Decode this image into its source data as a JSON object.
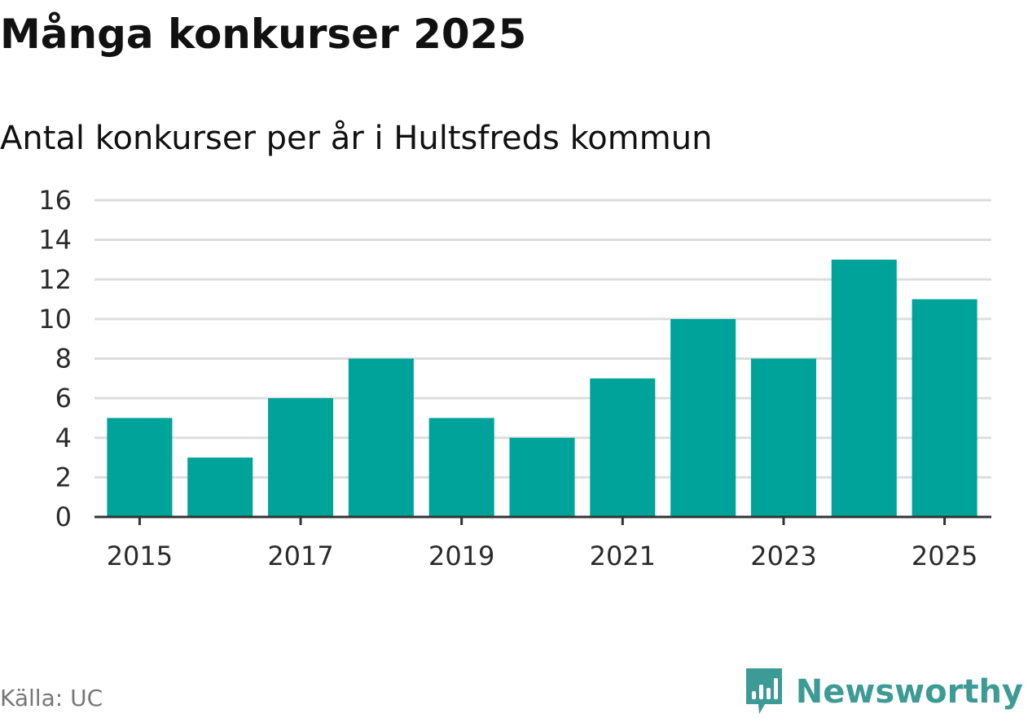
{
  "colors": {
    "bar": "#00a39a",
    "grid": "#dddddd",
    "axis": "#333333",
    "brand": "#3d9b96",
    "source_text": "#777777"
  },
  "footer": {
    "source": "Källa: UC",
    "brand_name": "Newsworthy",
    "brand_icon": "bar-chart-speech-bubble-icon"
  },
  "chart_data": {
    "type": "bar",
    "title": "Många konkurser 2025",
    "subtitle": "Antal konkurser per år i Hultsfreds kommun",
    "xlabel": "",
    "ylabel": "",
    "categories": [
      "2015",
      "2016",
      "2017",
      "2018",
      "2019",
      "2020",
      "2021",
      "2022",
      "2023",
      "2024",
      "2025"
    ],
    "values": [
      5,
      3,
      6,
      8,
      5,
      4,
      7,
      10,
      8,
      13,
      11
    ],
    "x_tick_labels": [
      "2015",
      "2017",
      "2019",
      "2021",
      "2023",
      "2025"
    ],
    "y_ticks": [
      0,
      2,
      4,
      6,
      8,
      10,
      12,
      14,
      16
    ],
    "ylim": [
      0,
      16
    ],
    "grid": true,
    "legend": "none"
  }
}
